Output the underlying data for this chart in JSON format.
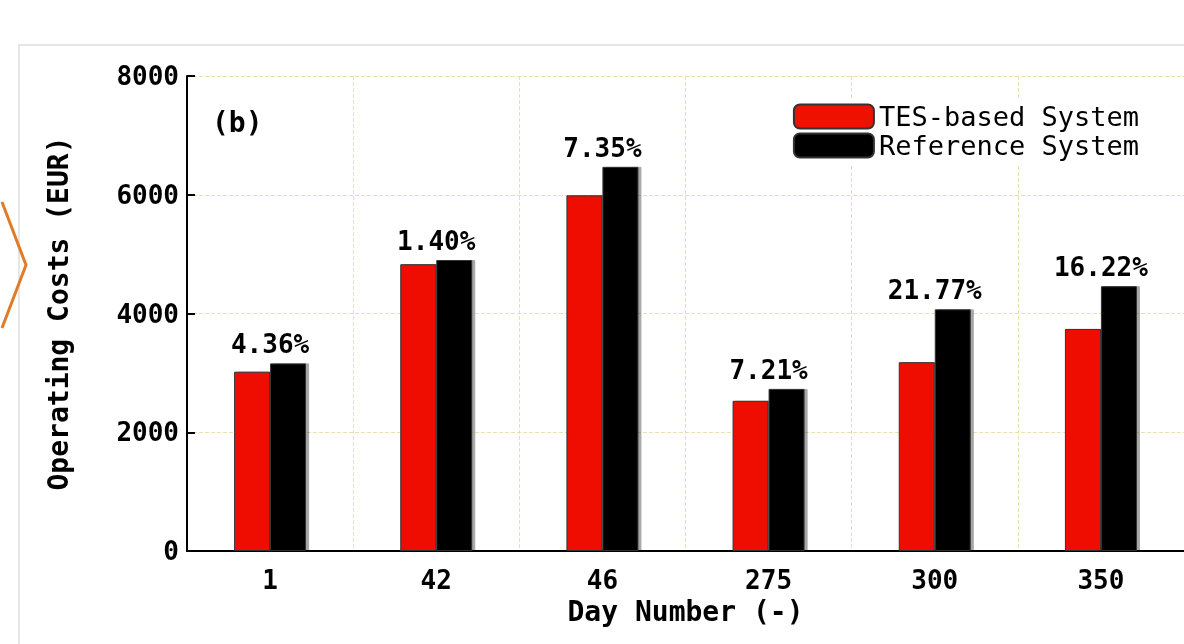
{
  "chart_data": {
    "type": "bar",
    "xlabel": "Day Number (-)",
    "ylabel": "Operating Costs (EUR)",
    "categories": [
      "1",
      "42",
      "46",
      "275",
      "300",
      "350"
    ],
    "series": [
      {
        "name": "TES-based System",
        "color": "#ee1100",
        "values": [
          3020,
          4830,
          5990,
          2530,
          3180,
          3740
        ]
      },
      {
        "name": "Reference System",
        "color": "#000000",
        "values": [
          3160,
          4900,
          6470,
          2730,
          4070,
          4460
        ]
      }
    ],
    "ylim": [
      0,
      8000
    ],
    "yticks": [
      0,
      2000,
      4000,
      6000,
      8000
    ],
    "grid": true,
    "legend": "top right",
    "annotations": [
      "(b)",
      {
        "text": "4.36%",
        "x": "1",
        "y": 3160
      },
      {
        "text": "1.40%",
        "x": "42",
        "y": 4900
      },
      {
        "text": "7.35%",
        "x": "46",
        "y": 6470
      },
      {
        "text": "7.21%",
        "x": "275",
        "y": 2730
      },
      {
        "text": "21.77%",
        "x": "300",
        "y": 4070
      },
      {
        "text": "16.22%",
        "x": "350",
        "y": 4460
      }
    ]
  }
}
